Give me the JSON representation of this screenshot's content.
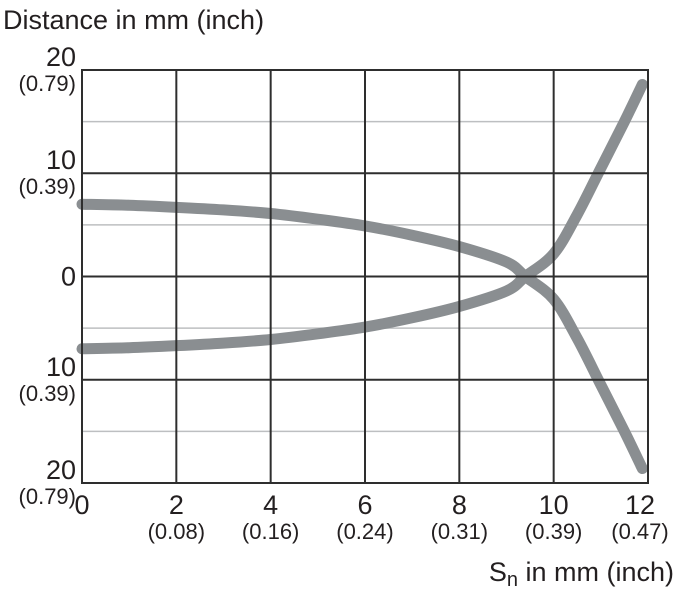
{
  "chart_data": {
    "type": "line",
    "title": "Distance in mm (inch)",
    "xlabel": "Sn in mm (inch)",
    "xlabel_parts": {
      "prefix": "S",
      "subscript": "n",
      "suffix": " in mm (inch)"
    },
    "ylabel": "Distance in mm (inch)",
    "xlim": [
      0,
      12
    ],
    "ylim": [
      -20,
      20
    ],
    "x_tick_values": [
      0,
      2,
      4,
      6,
      8,
      10,
      12
    ],
    "x_ticks": [
      {
        "mm": "0",
        "inch": ""
      },
      {
        "mm": "2",
        "inch": "(0.08)"
      },
      {
        "mm": "4",
        "inch": "(0.16)"
      },
      {
        "mm": "6",
        "inch": "(0.24)"
      },
      {
        "mm": "8",
        "inch": "(0.31)"
      },
      {
        "mm": "10",
        "inch": "(0.39)"
      },
      {
        "mm": "12",
        "inch": "(0.47)"
      }
    ],
    "y_ticks": [
      {
        "value": 20,
        "mm": "20",
        "inch": "(0.79)"
      },
      {
        "value": 10,
        "mm": "10",
        "inch": "(0.39)"
      },
      {
        "value": 0,
        "mm": "0",
        "inch": ""
      },
      {
        "value": -10,
        "mm": "10",
        "inch": "(0.39)"
      },
      {
        "value": -20,
        "mm": "20",
        "inch": "(0.79)"
      }
    ],
    "grid": {
      "on": true,
      "y_major_step": 10,
      "x_major_step": 2,
      "y_minor_values": [
        15,
        5,
        -5,
        -15
      ]
    },
    "legend": "none",
    "series": [
      {
        "name": "upper-falling-curve",
        "points": [
          [
            0,
            7.0
          ],
          [
            1,
            6.9
          ],
          [
            2,
            6.7
          ],
          [
            3,
            6.45
          ],
          [
            4,
            6.1
          ],
          [
            5,
            5.55
          ],
          [
            6,
            4.9
          ],
          [
            7,
            4.0
          ],
          [
            8,
            2.9
          ],
          [
            9,
            1.4
          ],
          [
            9.4,
            0
          ],
          [
            10,
            -2.2
          ],
          [
            10.5,
            -6.0
          ],
          [
            11,
            -10.5
          ],
          [
            11.5,
            -15.0
          ],
          [
            11.88,
            -18.6
          ]
        ]
      },
      {
        "name": "lower-rising-curve",
        "points": [
          [
            0,
            -7.0
          ],
          [
            1,
            -6.9
          ],
          [
            2,
            -6.7
          ],
          [
            3,
            -6.45
          ],
          [
            4,
            -6.1
          ],
          [
            5,
            -5.55
          ],
          [
            6,
            -4.9
          ],
          [
            7,
            -4.0
          ],
          [
            8,
            -2.9
          ],
          [
            9,
            -1.4
          ],
          [
            9.4,
            0
          ],
          [
            10,
            2.2
          ],
          [
            10.5,
            6.0
          ],
          [
            11,
            10.5
          ],
          [
            11.5,
            15.0
          ],
          [
            11.88,
            18.6
          ]
        ]
      }
    ],
    "crossing_point": [
      9.4,
      0
    ],
    "styles": {
      "curve_color": "#8a8e91",
      "curve_width": 11,
      "major_grid_color": "#2e2e2e",
      "minor_grid_color": "#bdbfc1",
      "text_color": "#231f20",
      "background": "#ffffff"
    }
  }
}
